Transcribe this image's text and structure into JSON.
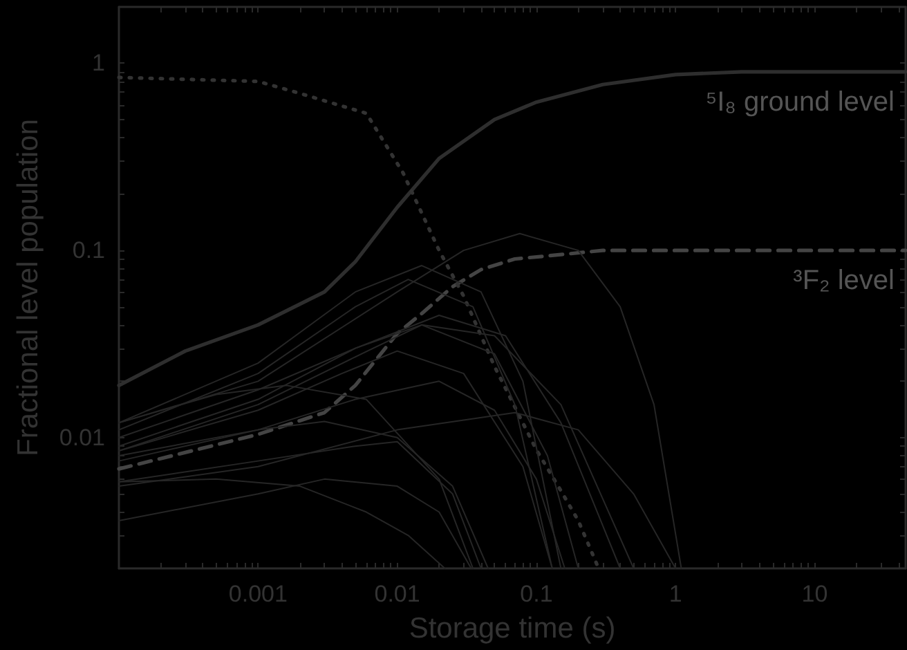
{
  "chart_data": {
    "type": "line",
    "xlabel": "Storage time (s)",
    "ylabel": "Fractional level population",
    "annotations": [
      "⁵I₈ ground level",
      "³F₂ level"
    ],
    "log": "xy",
    "grid": false,
    "marker": "none",
    "xlim": [
      0.0001,
      45
    ],
    "ylim": [
      0.002,
      2
    ],
    "xticks": [
      {
        "value": 0.0002,
        "label": null
      },
      {
        "value": 0.0003,
        "label": null
      },
      {
        "value": 0.0004,
        "label": null
      },
      {
        "value": 0.0005,
        "label": null
      },
      {
        "value": 0.0006,
        "label": null
      },
      {
        "value": 0.0007,
        "label": null
      },
      {
        "value": 0.0008,
        "label": null
      },
      {
        "value": 0.0009,
        "label": null
      },
      0.001,
      {
        "value": 0.002,
        "label": null
      },
      {
        "value": 0.003,
        "label": null
      },
      {
        "value": 0.004,
        "label": null
      },
      {
        "value": 0.005,
        "label": null
      },
      {
        "value": 0.006,
        "label": null
      },
      {
        "value": 0.007,
        "label": null
      },
      {
        "value": 0.008,
        "label": null
      },
      {
        "value": 0.009,
        "label": null
      },
      0.01,
      {
        "value": 0.02,
        "label": null
      },
      {
        "value": 0.03,
        "label": null
      },
      {
        "value": 0.04,
        "label": null
      },
      {
        "value": 0.05,
        "label": null
      },
      {
        "value": 0.06,
        "label": null
      },
      {
        "value": 0.07,
        "label": null
      },
      {
        "value": 0.08,
        "label": null
      },
      {
        "value": 0.09,
        "label": null
      },
      0.1,
      {
        "value": 0.2,
        "label": null
      },
      {
        "value": 0.3,
        "label": null
      },
      {
        "value": 0.4,
        "label": null
      },
      {
        "value": 0.5,
        "label": null
      },
      {
        "value": 0.6,
        "label": null
      },
      {
        "value": 0.7,
        "label": null
      },
      {
        "value": 0.8,
        "label": null
      },
      {
        "value": 0.9,
        "label": null
      },
      1,
      {
        "value": 2,
        "label": null
      },
      {
        "value": 3,
        "label": null
      },
      {
        "value": 4,
        "label": null
      },
      {
        "value": 5,
        "label": null
      },
      {
        "value": 6,
        "label": null
      },
      {
        "value": 7,
        "label": null
      },
      {
        "value": 8,
        "label": null
      },
      {
        "value": 9,
        "label": null
      },
      10,
      {
        "value": 20,
        "label": null
      },
      {
        "value": 30,
        "label": null
      },
      {
        "value": 40,
        "label": null
      }
    ],
    "yticks": [
      {
        "value": 0.003,
        "label": null
      },
      {
        "value": 0.004,
        "label": null
      },
      {
        "value": 0.005,
        "label": null
      },
      {
        "value": 0.006,
        "label": null
      },
      {
        "value": 0.007,
        "label": null
      },
      {
        "value": 0.008,
        "label": null
      },
      {
        "value": 0.009,
        "label": null
      },
      0.01,
      {
        "value": 0.02,
        "label": null
      },
      {
        "value": 0.03,
        "label": null
      },
      {
        "value": 0.04,
        "label": null
      },
      {
        "value": 0.05,
        "label": null
      },
      {
        "value": 0.06,
        "label": null
      },
      {
        "value": 0.07,
        "label": null
      },
      {
        "value": 0.08,
        "label": null
      },
      {
        "value": 0.09,
        "label": null
      },
      0.1,
      {
        "value": 0.2,
        "label": null
      },
      {
        "value": 0.3,
        "label": null
      },
      {
        "value": 0.4,
        "label": null
      },
      {
        "value": 0.5,
        "label": null
      },
      {
        "value": 0.6,
        "label": null
      },
      {
        "value": 0.7,
        "label": null
      },
      {
        "value": 0.8,
        "label": null
      },
      {
        "value": 0.9,
        "label": null
      },
      1
    ],
    "series": [
      {
        "color": "#2e2e2e",
        "line_style": "solid",
        "x": [
          0.0001,
          0.0003,
          0.001,
          0.003,
          0.005,
          0.01,
          0.02,
          0.05,
          0.1,
          0.3,
          1,
          3,
          45
        ],
        "values": [
          0.019,
          0.029,
          0.04,
          0.06,
          0.087,
          0.17,
          0.31,
          0.5,
          0.62,
          0.77,
          0.87,
          0.9,
          0.9
        ]
      },
      {
        "color": "#444444",
        "line_style": "dashed",
        "x": [
          0.0001,
          0.001,
          0.003,
          0.005,
          0.01,
          0.015,
          0.025,
          0.04,
          0.07,
          0.15,
          0.3,
          45
        ],
        "values": [
          0.0068,
          0.0104,
          0.0136,
          0.019,
          0.036,
          0.046,
          0.064,
          0.079,
          0.09,
          0.095,
          0.1,
          0.1
        ]
      },
      {
        "color": "#333333",
        "line_style": "dotted",
        "x": [
          0.0001,
          0.001,
          0.002,
          0.006,
          0.011,
          0.02,
          0.03,
          0.05,
          0.1,
          0.15,
          0.2,
          0.28
        ],
        "values": [
          0.84,
          0.8,
          0.69,
          0.54,
          0.26,
          0.1,
          0.057,
          0.024,
          0.0086,
          0.0052,
          0.0036,
          0.002
        ]
      },
      {
        "color": "#262626",
        "line_style": "solid",
        "x": [
          0.0001,
          0.001,
          0.01,
          0.03,
          0.076,
          0.2,
          0.4,
          0.7,
          1.1
        ],
        "values": [
          0.012,
          0.02,
          0.06,
          0.1,
          0.123,
          0.1,
          0.05,
          0.015,
          0.002
        ]
      },
      {
        "color": "#262626",
        "line_style": "solid",
        "x": [
          0.0001,
          0.001,
          0.005,
          0.015,
          0.04,
          0.08,
          0.15
        ],
        "values": [
          0.012,
          0.025,
          0.06,
          0.083,
          0.06,
          0.02,
          0.002
        ]
      },
      {
        "color": "#262626",
        "line_style": "solid",
        "x": [
          0.0001,
          0.001,
          0.005,
          0.012,
          0.035,
          0.07,
          0.13
        ],
        "values": [
          0.011,
          0.022,
          0.05,
          0.07,
          0.05,
          0.015,
          0.002
        ]
      },
      {
        "color": "#262626",
        "line_style": "solid",
        "x": [
          0.0001,
          0.001,
          0.005,
          0.02,
          0.06,
          0.15,
          0.4
        ],
        "values": [
          0.009,
          0.016,
          0.03,
          0.045,
          0.035,
          0.012,
          0.002
        ]
      },
      {
        "color": "#262626",
        "line_style": "solid",
        "x": [
          0.0001,
          0.001,
          0.005,
          0.015,
          0.05,
          0.15,
          0.5
        ],
        "values": [
          0.0085,
          0.015,
          0.027,
          0.04,
          0.035,
          0.015,
          0.002
        ]
      },
      {
        "color": "#262626",
        "line_style": "solid",
        "x": [
          0.0001,
          0.001,
          0.01,
          0.07,
          0.2,
          0.5,
          1
        ],
        "values": [
          0.0055,
          0.007,
          0.011,
          0.0136,
          0.011,
          0.005,
          0.002
        ]
      },
      {
        "color": "#262626",
        "line_style": "solid",
        "x": [
          0.0001,
          0.0005,
          0.002,
          0.006,
          0.012,
          0.022
        ],
        "values": [
          0.0058,
          0.006,
          0.0055,
          0.004,
          0.003,
          0.002
        ]
      },
      {
        "color": "#262626",
        "line_style": "solid",
        "x": [
          0.0001,
          0.001,
          0.003,
          0.01,
          0.02,
          0.034
        ],
        "values": [
          0.0036,
          0.005,
          0.006,
          0.0055,
          0.004,
          0.002
        ]
      },
      {
        "color": "#262626",
        "line_style": "solid",
        "x": [
          0.0001,
          0.001,
          0.003,
          0.01,
          0.025,
          0.045
        ],
        "values": [
          0.008,
          0.011,
          0.0122,
          0.01,
          0.0055,
          0.002
        ]
      },
      {
        "color": "#262626",
        "line_style": "solid",
        "x": [
          0.0001,
          0.001,
          0.005,
          0.01,
          0.025,
          0.04
        ],
        "values": [
          0.0058,
          0.0075,
          0.009,
          0.0095,
          0.005,
          0.002
        ]
      },
      {
        "color": "#262626",
        "line_style": "solid",
        "x": [
          0.0001,
          0.0005,
          0.0016,
          0.006,
          0.02,
          0.035
        ],
        "values": [
          0.012,
          0.017,
          0.019,
          0.016,
          0.006,
          0.002
        ]
      },
      {
        "color": "#262626",
        "line_style": "solid",
        "x": [
          0.0001,
          0.001,
          0.004,
          0.01,
          0.03,
          0.08,
          0.13
        ],
        "values": [
          0.0085,
          0.014,
          0.022,
          0.029,
          0.022,
          0.007,
          0.002
        ]
      },
      {
        "color": "#262626",
        "line_style": "solid",
        "x": [
          0.0001,
          0.001,
          0.005,
          0.02,
          0.05,
          0.1,
          0.16
        ],
        "values": [
          0.0075,
          0.011,
          0.016,
          0.02,
          0.014,
          0.006,
          0.002
        ]
      },
      {
        "color": "#262626",
        "line_style": "solid",
        "x": [
          0.0001,
          0.001,
          0.005,
          0.015,
          0.05,
          0.12,
          0.2
        ],
        "values": [
          0.01,
          0.018,
          0.03,
          0.04,
          0.028,
          0.008,
          0.002
        ]
      }
    ]
  }
}
